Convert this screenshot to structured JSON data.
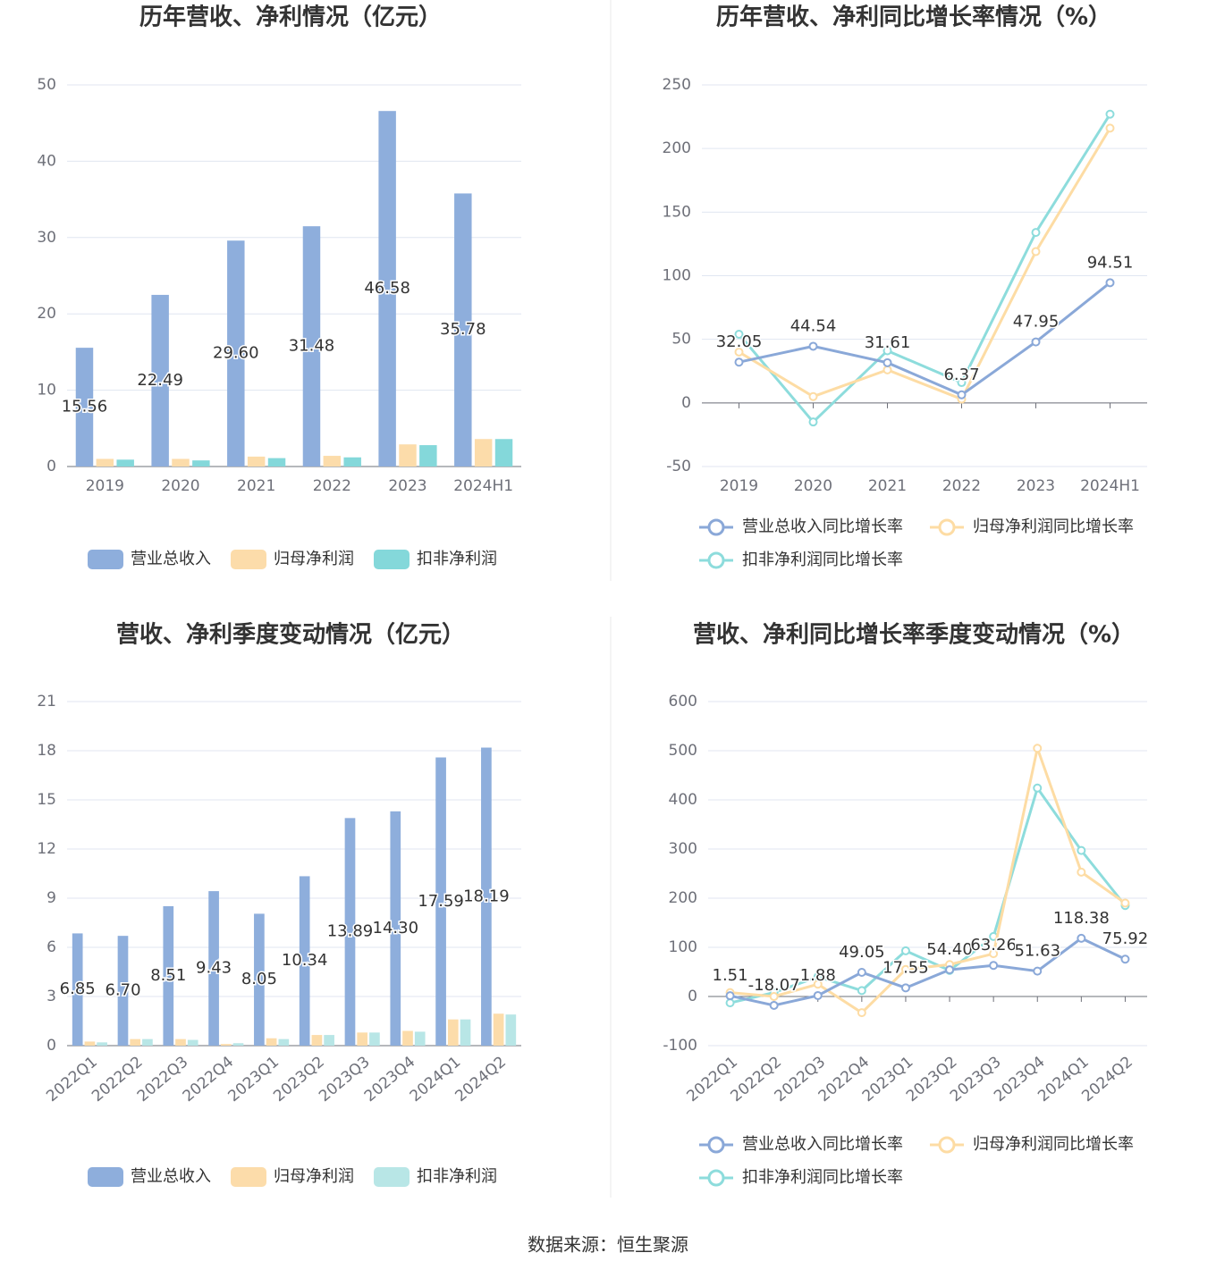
{
  "chart_data": [
    {
      "type": "bar",
      "title": "历年营收、净利情况（亿元）",
      "categories": [
        "2019",
        "2020",
        "2021",
        "2022",
        "2023",
        "2024H1"
      ],
      "series": [
        {
          "name": "营业总收入",
          "color": "#8eaedc",
          "show_labels": true,
          "values": [
            15.56,
            22.49,
            29.6,
            31.48,
            46.58,
            35.78
          ],
          "value_labels": [
            "15.56",
            "22.49",
            "29.60",
            "31.48",
            "46.58",
            "35.78"
          ]
        },
        {
          "name": "归母净利润",
          "color": "#fcdcaa",
          "values": [
            1.0,
            1.0,
            1.3,
            1.4,
            2.9,
            3.6
          ]
        },
        {
          "name": "扣非净利润",
          "color": "#84d8da",
          "values": [
            0.9,
            0.8,
            1.1,
            1.2,
            2.8,
            3.6
          ]
        }
      ],
      "ylim": [
        0,
        50
      ],
      "yticks": [
        0,
        10,
        20,
        30,
        40,
        50
      ],
      "grid": true
    },
    {
      "type": "line",
      "title": "历年营收、净利同比增长率情况（%）",
      "categories": [
        "2019",
        "2020",
        "2021",
        "2022",
        "2023",
        "2024H1"
      ],
      "series": [
        {
          "name": "营业总收入同比增长率",
          "color": "#8aa8d8",
          "show_labels": true,
          "values": [
            32.05,
            44.54,
            31.61,
            6.37,
            47.95,
            94.51
          ]
        },
        {
          "name": "归母净利润同比增长率",
          "color": "#fddca4",
          "values": [
            40,
            5,
            26,
            3,
            119,
            216
          ]
        },
        {
          "name": "扣非净利润同比增长率",
          "color": "#8ddcdc",
          "values": [
            54,
            -15,
            41,
            16,
            134,
            227
          ]
        }
      ],
      "ylim": [
        -50,
        250
      ],
      "yticks": [
        -50,
        0,
        50,
        100,
        150,
        200,
        250
      ],
      "grid": true
    },
    {
      "type": "bar",
      "title": "营收、净利季度变动情况（亿元）",
      "categories": [
        "2022Q1",
        "2022Q2",
        "2022Q3",
        "2022Q4",
        "2023Q1",
        "2023Q2",
        "2023Q3",
        "2023Q4",
        "2024Q1",
        "2024Q2"
      ],
      "series": [
        {
          "name": "营业总收入",
          "color": "#8eaedc",
          "show_labels": true,
          "values": [
            6.85,
            6.7,
            8.51,
            9.43,
            8.05,
            10.34,
            13.89,
            14.3,
            17.59,
            18.19
          ],
          "value_labels": [
            "6.85",
            "6.70",
            "8.51",
            "9.43",
            "8.05",
            "10.34",
            "13.89",
            "14.30",
            "17.59",
            "18.19"
          ]
        },
        {
          "name": "归母净利润",
          "color": "#fcdcaa",
          "values": [
            0.25,
            0.4,
            0.4,
            0.1,
            0.45,
            0.65,
            0.8,
            0.9,
            1.6,
            1.95
          ]
        },
        {
          "name": "扣非净利润",
          "color": "#b8e6e6",
          "values": [
            0.2,
            0.4,
            0.35,
            0.15,
            0.4,
            0.65,
            0.8,
            0.85,
            1.6,
            1.9
          ]
        }
      ],
      "ylim": [
        0,
        21
      ],
      "yticks": [
        0,
        3,
        6,
        9,
        12,
        15,
        18,
        21
      ],
      "grid": true
    },
    {
      "type": "line",
      "title": "营收、净利同比增长率季度变动情况（%）",
      "categories": [
        "2022Q1",
        "2022Q2",
        "2022Q3",
        "2022Q4",
        "2023Q1",
        "2023Q2",
        "2023Q3",
        "2023Q4",
        "2024Q1",
        "2024Q2"
      ],
      "series": [
        {
          "name": "营业总收入同比增长率",
          "color": "#8aa8d8",
          "show_labels": true,
          "values": [
            1.51,
            -18.07,
            1.88,
            49.05,
            17.55,
            54.4,
            63.26,
            51.63,
            118.38,
            75.92
          ],
          "value_labels": [
            "1.51",
            "-18.07",
            "1.88",
            "49.05",
            "17.55",
            "54.40",
            "63.26",
            "51.63",
            "118.38",
            "75.92"
          ]
        },
        {
          "name": "归母净利润同比增长率",
          "color": "#fddca4",
          "values": [
            8,
            0,
            25,
            -33,
            55,
            65,
            87,
            505,
            253,
            190
          ]
        },
        {
          "name": "扣非净利润同比增长率",
          "color": "#8ddcdc",
          "values": [
            -13,
            8,
            40,
            12,
            93,
            53,
            122,
            424,
            297,
            185
          ]
        }
      ],
      "ylim": [
        -100,
        600
      ],
      "yticks": [
        -100,
        0,
        100,
        200,
        300,
        400,
        500,
        600
      ],
      "grid": true
    }
  ],
  "source": "数据来源：恒生聚源"
}
